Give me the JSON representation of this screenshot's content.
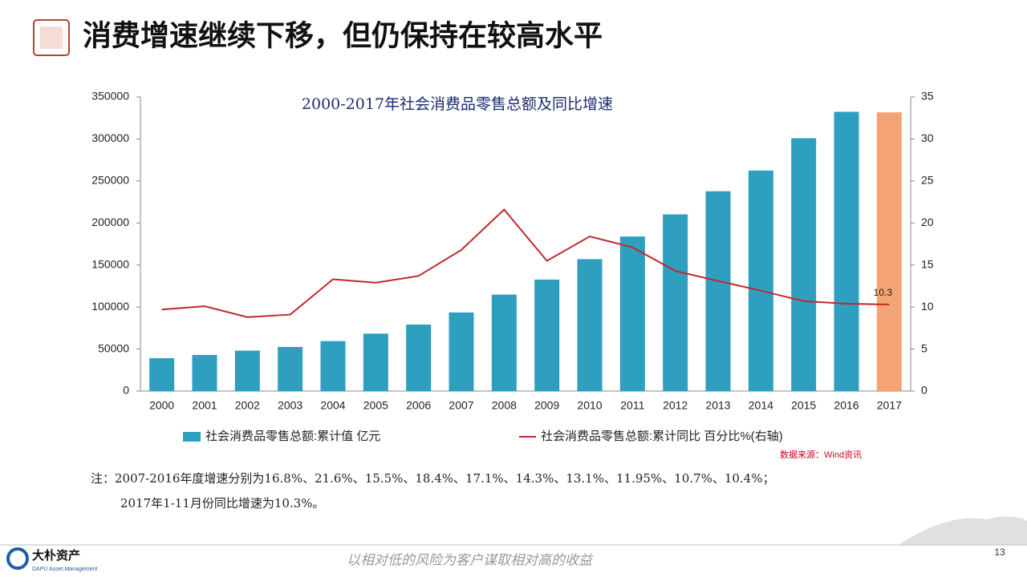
{
  "header": {
    "title": "消费增速继续下移，但仍保持在较高水平"
  },
  "chart_data": {
    "type": "bar_line",
    "title": "2000-2017年社会消费品零售总额及同比增速",
    "categories": [
      "2000",
      "2001",
      "2002",
      "2003",
      "2004",
      "2005",
      "2006",
      "2007",
      "2008",
      "2009",
      "2010",
      "2011",
      "2012",
      "2013",
      "2014",
      "2015",
      "2016",
      "2017"
    ],
    "series": [
      {
        "name": "社会消费品零售总额:累计值 亿元",
        "type": "bar",
        "axis": "y",
        "color": "#2e9fbf",
        "colors": [
          "#2e9fbf",
          "#2e9fbf",
          "#2e9fbf",
          "#2e9fbf",
          "#2e9fbf",
          "#2e9fbf",
          "#2e9fbf",
          "#2e9fbf",
          "#2e9fbf",
          "#2e9fbf",
          "#2e9fbf",
          "#2e9fbf",
          "#2e9fbf",
          "#2e9fbf",
          "#2e9fbf",
          "#2e9fbf",
          "#2e9fbf",
          "#f4a374"
        ],
        "values": [
          39106,
          43055,
          48136,
          52516,
          59501,
          68353,
          79145,
          93572,
          114830,
          132678,
          156998,
          183919,
          210307,
          237810,
          262394,
          300931,
          332316,
          331750
        ]
      },
      {
        "name": "社会消费品零售总额:累计同比 百分比%(右轴)",
        "type": "line",
        "axis": "y2",
        "color": "#c0282d",
        "values": [
          9.7,
          10.1,
          8.8,
          9.1,
          13.3,
          12.9,
          13.7,
          16.8,
          21.6,
          15.5,
          18.4,
          17.1,
          14.3,
          13.1,
          11.95,
          10.7,
          10.4,
          10.3
        ]
      }
    ],
    "ylim": [
      0,
      350000
    ],
    "yticks": [
      0,
      50000,
      100000,
      150000,
      200000,
      250000,
      300000,
      350000
    ],
    "y2lim": [
      0,
      35
    ],
    "y2ticks": [
      0,
      5,
      10,
      15,
      20,
      25,
      30,
      35
    ],
    "source": "数据来源：Wind资讯"
  },
  "notes": [
    "注：2007-2016年度增速分别为16.8%、21.6%、15.5%、18.4%、17.1%、14.3%、13.1%、11.95%、10.7%、10.4%；",
    "2017年1-11月份同比增速为10.3%。"
  ],
  "footer": {
    "brand": "大朴资产",
    "brand_en": "DAPU Asset Management",
    "slogan": "以相对低的风险为客户谋取相对高的收益",
    "page": "13"
  }
}
